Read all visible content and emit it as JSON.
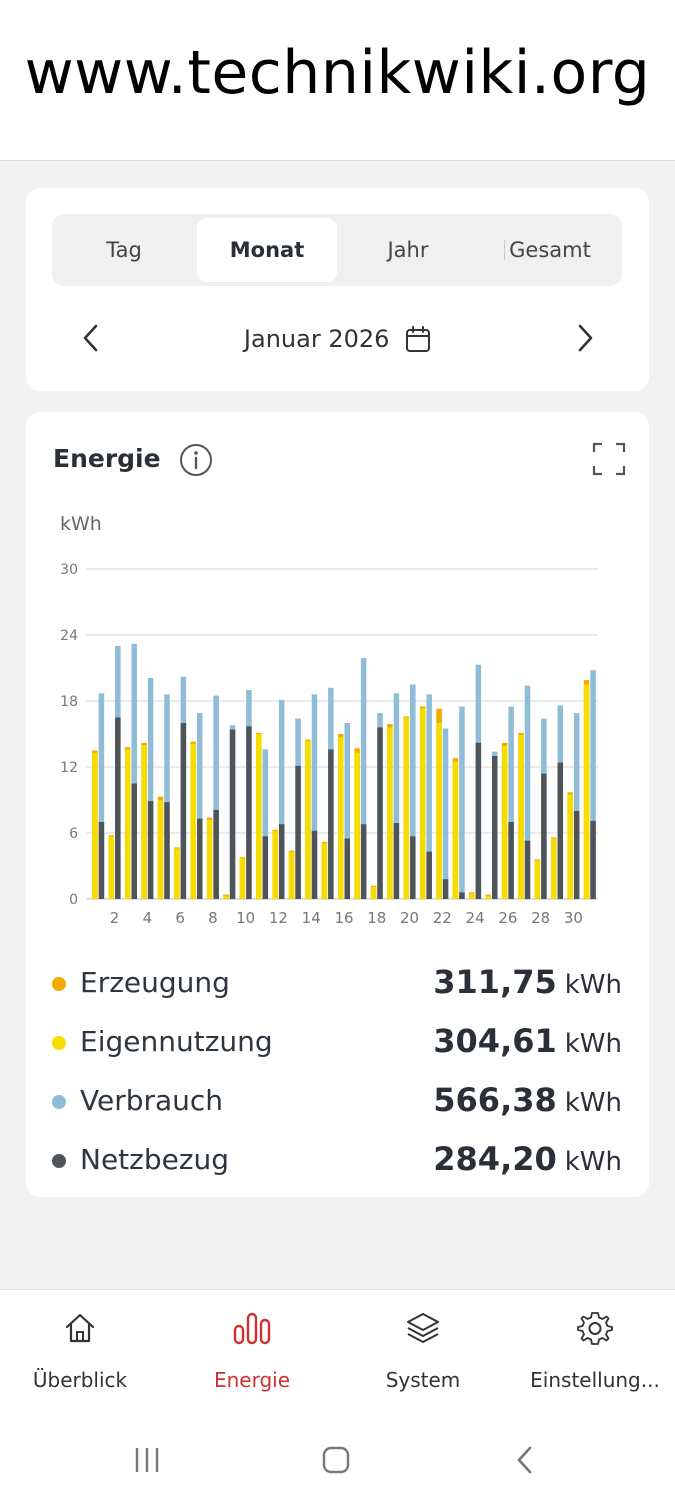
{
  "watermark": "www.technikwiki.org",
  "period_tabs": [
    {
      "label": "Tag",
      "active": false
    },
    {
      "label": "Monat",
      "active": true
    },
    {
      "label": "Jahr",
      "active": false
    },
    {
      "label": "Gesamt",
      "active": false
    }
  ],
  "period": {
    "label": "Januar 2026",
    "icon": "calendar-icon",
    "prev_icon": "chevron-left-icon",
    "next_icon": "chevron-right-icon"
  },
  "energy": {
    "title": "Energie",
    "info_icon": "info-icon",
    "expand_icon": "expand-icon"
  },
  "colors": {
    "erzeugung": "#f5a800",
    "eigennutzung": "#f7dc00",
    "verbrauch": "#8fbcd6",
    "netzbezug": "#4f5459",
    "accent": "#d32f2f"
  },
  "chart_data": {
    "type": "bar",
    "ylabel": "kWh",
    "ylim": [
      0,
      30
    ],
    "yticks": [
      0,
      6,
      12,
      18,
      24,
      30
    ],
    "grid": true,
    "x": [
      1,
      2,
      3,
      4,
      5,
      6,
      7,
      8,
      9,
      10,
      11,
      12,
      13,
      14,
      15,
      16,
      17,
      18,
      19,
      20,
      21,
      22,
      23,
      24,
      25,
      26,
      27,
      28,
      29,
      30,
      31
    ],
    "xtick_labels": [
      "2",
      "4",
      "6",
      "8",
      "10",
      "12",
      "14",
      "16",
      "18",
      "20",
      "22",
      "24",
      "26",
      "28",
      "30"
    ],
    "series": [
      {
        "name": "Erzeugung",
        "values": [
          13.5,
          5.8,
          13.8,
          14.2,
          9.3,
          4.7,
          14.3,
          7.4,
          0.4,
          3.8,
          15.1,
          6.3,
          4.4,
          14.5,
          5.2,
          15.0,
          13.7,
          1.2,
          15.9,
          16.6,
          17.5,
          17.3,
          12.8,
          0.6,
          0.4,
          14.2,
          15.1,
          3.6,
          5.6,
          9.7,
          19.9
        ]
      },
      {
        "name": "Eigennutzung",
        "values": [
          13.3,
          5.7,
          13.6,
          14.0,
          9.0,
          4.6,
          14.1,
          7.2,
          0.3,
          3.7,
          15.0,
          6.2,
          4.3,
          14.4,
          5.1,
          14.7,
          13.3,
          1.1,
          15.6,
          16.5,
          17.3,
          16.0,
          12.5,
          0.5,
          0.3,
          13.9,
          14.9,
          3.5,
          5.5,
          9.5,
          19.5
        ]
      },
      {
        "name": "Verbrauch",
        "values": [
          18.7,
          23.0,
          23.2,
          20.1,
          18.6,
          20.2,
          16.9,
          18.5,
          15.8,
          19.0,
          13.6,
          18.1,
          16.4,
          18.6,
          19.2,
          16.0,
          21.9,
          16.9,
          18.7,
          19.5,
          18.6,
          15.5,
          17.5,
          21.3,
          13.4,
          17.5,
          19.4,
          16.4,
          17.6,
          16.9,
          20.8
        ]
      },
      {
        "name": "Netzbezug",
        "values": [
          7.0,
          16.5,
          10.5,
          8.9,
          8.8,
          16.0,
          7.3,
          8.1,
          15.4,
          15.7,
          5.7,
          6.8,
          12.1,
          6.2,
          13.6,
          5.5,
          6.8,
          15.6,
          6.9,
          5.7,
          4.3,
          1.8,
          0.6,
          14.2,
          13.0,
          7.0,
          5.3,
          11.4,
          12.4,
          8.0,
          7.1
        ]
      }
    ]
  },
  "legend": [
    {
      "label": "Erzeugung",
      "value": "311,75",
      "unit": "kWh",
      "color": "#f5a800"
    },
    {
      "label": "Eigennutzung",
      "value": "304,61",
      "unit": "kWh",
      "color": "#f7dc00"
    },
    {
      "label": "Verbrauch",
      "value": "566,38",
      "unit": "kWh",
      "color": "#8fbcd6"
    },
    {
      "label": "Netzbezug",
      "value": "284,20",
      "unit": "kWh",
      "color": "#4f5459"
    }
  ],
  "bottom_nav": [
    {
      "label": "Überblick",
      "icon": "home-icon",
      "active": false
    },
    {
      "label": "Energie",
      "icon": "bar-chart-icon",
      "active": true
    },
    {
      "label": "System",
      "icon": "layers-icon",
      "active": false
    },
    {
      "label": "Einstellung...",
      "icon": "gear-icon",
      "active": false
    }
  ],
  "system_nav": {
    "recents_icon": "recents-icon",
    "home_icon": "home-button-icon",
    "back_icon": "back-icon"
  }
}
